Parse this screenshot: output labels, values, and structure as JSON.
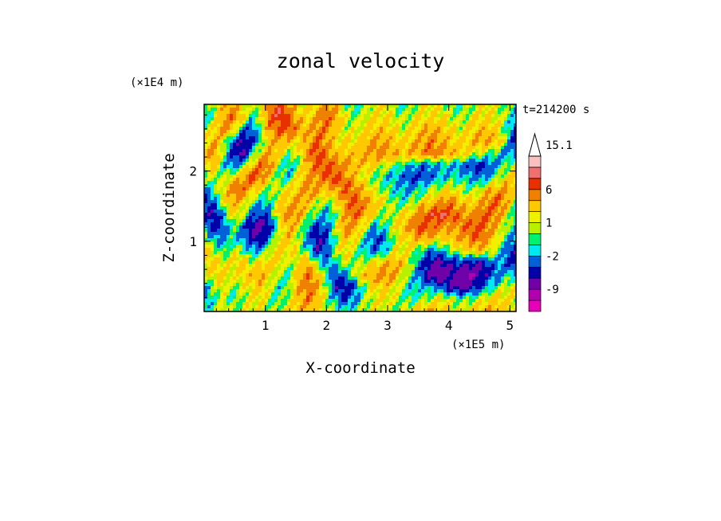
{
  "chart_data": {
    "type": "heatmap",
    "title": "zonal velocity",
    "xlabel": "X-coordinate",
    "ylabel": "Z-coordinate",
    "x_unit_label": "(×1E5 m)",
    "y_unit_label": "(×1E4 m)",
    "time_label": "t=214200 s",
    "xlim": [
      0,
      5.1
    ],
    "ylim": [
      0,
      2.95
    ],
    "x_ticks": [
      "1",
      "2",
      "3",
      "4",
      "5"
    ],
    "x_tick_values": [
      1,
      2,
      3,
      4,
      5
    ],
    "y_ticks": [
      "1",
      "2"
    ],
    "y_tick_values": [
      1,
      2
    ],
    "colorbar": {
      "levels": [
        -15,
        -12,
        -9,
        -6,
        -4,
        -2,
        -1,
        0,
        1,
        2,
        4,
        6,
        8,
        10,
        12,
        15.1
      ],
      "labels": [
        "15.1",
        "6",
        "1",
        "-2",
        "-9"
      ],
      "label_values": [
        15.1,
        6,
        1,
        -2,
        -9
      ],
      "colors": [
        "#e800b8",
        "#b000b0",
        "#7000a8",
        "#0000a8",
        "#0060d8",
        "#00e8f0",
        "#00f070",
        "#b8f000",
        "#f0f000",
        "#ffc800",
        "#f08000",
        "#e83000",
        "#f07070",
        "#f8c0c0"
      ],
      "extend_top": true
    },
    "field": {
      "nx": 34,
      "nz": 18,
      "values": [
        [
          -1,
          1,
          3,
          4,
          2,
          0,
          2,
          5,
          7,
          4,
          2,
          1,
          3,
          5,
          3,
          0,
          -1,
          0,
          1,
          2,
          0,
          -1,
          0,
          1,
          2,
          1,
          0,
          -1,
          0,
          1,
          2,
          1,
          0,
          -1
        ],
        [
          -2,
          0,
          4,
          6,
          3,
          -1,
          1,
          6,
          8,
          6,
          3,
          2,
          4,
          6,
          4,
          1,
          0,
          1,
          2,
          2,
          1,
          0,
          1,
          2,
          2,
          2,
          1,
          0,
          1,
          2,
          2,
          1,
          0,
          -2
        ],
        [
          0,
          2,
          5,
          3,
          -2,
          -4,
          0,
          5,
          6,
          7,
          4,
          3,
          5,
          5,
          3,
          1,
          1,
          2,
          3,
          3,
          2,
          1,
          2,
          3,
          4,
          3,
          2,
          1,
          2,
          3,
          3,
          2,
          -1,
          -4
        ],
        [
          1,
          4,
          2,
          -3,
          -6,
          -5,
          -1,
          3,
          4,
          3,
          2,
          4,
          6,
          4,
          2,
          2,
          2,
          3,
          4,
          4,
          3,
          2,
          3,
          4,
          5,
          4,
          3,
          2,
          3,
          4,
          4,
          3,
          0,
          -6
        ],
        [
          3,
          5,
          0,
          -5,
          -7,
          -2,
          2,
          4,
          2,
          0,
          1,
          5,
          7,
          5,
          3,
          3,
          3,
          4,
          5,
          5,
          4,
          3,
          4,
          5,
          6,
          5,
          4,
          3,
          2,
          1,
          0,
          -1,
          -3,
          -2
        ],
        [
          2,
          3,
          -1,
          -3,
          -1,
          3,
          6,
          5,
          0,
          -2,
          0,
          4,
          6,
          6,
          5,
          4,
          3,
          3,
          2,
          1,
          0,
          -1,
          -2,
          -3,
          -3,
          -2,
          -2,
          -3,
          -4,
          -5,
          -4,
          -2,
          0,
          1
        ],
        [
          0,
          1,
          0,
          2,
          4,
          7,
          5,
          2,
          -1,
          -1,
          2,
          4,
          5,
          6,
          7,
          5,
          3,
          1,
          0,
          -1,
          -2,
          -3,
          -4,
          -4,
          -3,
          -2,
          -1,
          -1,
          -2,
          -3,
          -2,
          0,
          2,
          3
        ],
        [
          -3,
          -1,
          2,
          5,
          6,
          3,
          1,
          0,
          1,
          2,
          3,
          5,
          4,
          3,
          4,
          6,
          5,
          3,
          1,
          0,
          -1,
          -2,
          -2,
          -1,
          0,
          1,
          2,
          1,
          0,
          1,
          3,
          4,
          5,
          2
        ],
        [
          -5,
          -3,
          1,
          4,
          3,
          0,
          -2,
          -1,
          2,
          3,
          5,
          3,
          1,
          0,
          2,
          5,
          7,
          5,
          3,
          2,
          0,
          -1,
          0,
          2,
          3,
          4,
          5,
          3,
          2,
          3,
          5,
          6,
          4,
          0
        ],
        [
          -4,
          -6,
          -2,
          2,
          1,
          -3,
          -4,
          -2,
          3,
          5,
          4,
          1,
          -1,
          -2,
          0,
          4,
          6,
          4,
          2,
          0,
          1,
          2,
          3,
          5,
          7,
          8,
          7,
          5,
          4,
          5,
          6,
          5,
          2,
          -2
        ],
        [
          -2,
          -5,
          -4,
          0,
          -2,
          -6,
          -7,
          -5,
          1,
          4,
          2,
          -2,
          -4,
          -3,
          1,
          5,
          4,
          1,
          -2,
          -1,
          1,
          3,
          5,
          7,
          6,
          5,
          4,
          5,
          6,
          7,
          5,
          3,
          0,
          -1
        ],
        [
          1,
          -2,
          -3,
          -1,
          -3,
          -5,
          -6,
          -2,
          2,
          3,
          0,
          -3,
          -6,
          -4,
          0,
          3,
          2,
          -1,
          -4,
          -3,
          0,
          2,
          3,
          4,
          3,
          2,
          3,
          4,
          5,
          6,
          4,
          2,
          -1,
          -3
        ],
        [
          3,
          1,
          -1,
          1,
          0,
          -2,
          -2,
          1,
          3,
          2,
          1,
          -1,
          -5,
          -3,
          1,
          2,
          0,
          -2,
          -3,
          -2,
          1,
          2,
          1,
          -1,
          -3,
          -2,
          0,
          1,
          2,
          3,
          2,
          0,
          -3,
          -5
        ],
        [
          2,
          3,
          1,
          2,
          3,
          1,
          2,
          3,
          2,
          0,
          2,
          4,
          0,
          -3,
          -1,
          1,
          0,
          1,
          2,
          3,
          4,
          3,
          0,
          -3,
          -6,
          -7,
          -5,
          -4,
          -5,
          -6,
          -4,
          -2,
          -4,
          -6
        ],
        [
          0,
          2,
          3,
          1,
          2,
          3,
          4,
          2,
          0,
          -1,
          3,
          5,
          3,
          -1,
          -4,
          -2,
          1,
          3,
          4,
          5,
          4,
          1,
          -1,
          -4,
          -7,
          -8,
          -7,
          -8,
          -9,
          -7,
          -5,
          -3,
          -1,
          -2
        ],
        [
          -2,
          0,
          2,
          0,
          1,
          2,
          3,
          1,
          -1,
          0,
          4,
          6,
          4,
          0,
          -5,
          -6,
          -3,
          0,
          2,
          3,
          2,
          0,
          -2,
          -1,
          -2,
          -3,
          -5,
          -7,
          -6,
          -4,
          -2,
          0,
          1,
          2
        ],
        [
          -3,
          -1,
          1,
          -1,
          0,
          1,
          2,
          0,
          -1,
          1,
          3,
          5,
          3,
          0,
          -2,
          -4,
          -2,
          0,
          1,
          2,
          1,
          0,
          -1,
          0,
          1,
          2,
          1,
          0,
          0,
          1,
          2,
          3,
          2,
          1
        ],
        [
          -1,
          0,
          2,
          0,
          1,
          2,
          1,
          0,
          1,
          2,
          3,
          4,
          2,
          1,
          0,
          -1,
          0,
          1,
          2,
          1,
          0,
          1,
          2,
          3,
          4,
          3,
          2,
          1,
          2,
          3,
          4,
          3,
          2,
          1
        ]
      ]
    }
  }
}
